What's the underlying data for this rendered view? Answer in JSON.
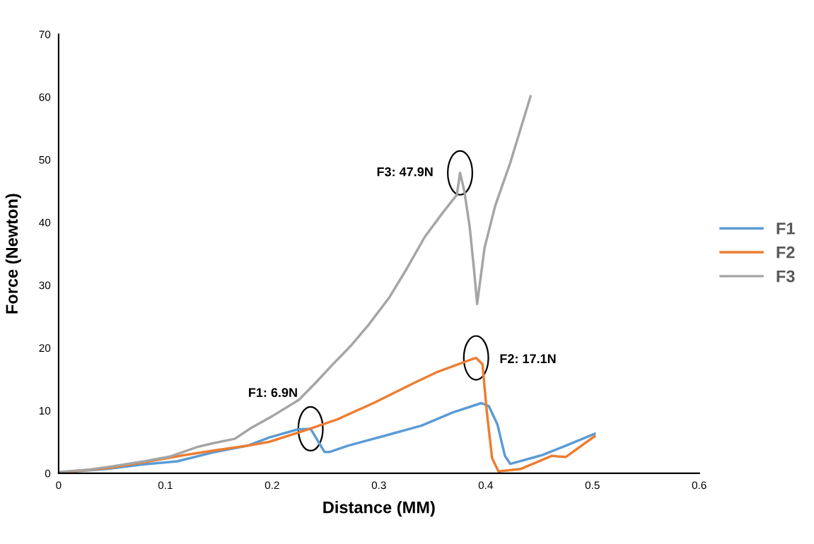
{
  "chart_data": {
    "type": "line",
    "xlabel": "Distance (MM)",
    "ylabel": "Force (Newton)",
    "xlim": [
      0,
      0.6
    ],
    "xticks": [
      0,
      0.1,
      0.2,
      0.3,
      0.4,
      0.5,
      0.6
    ],
    "ylim": [
      0,
      70
    ],
    "yticks": [
      0,
      10,
      20,
      30,
      40,
      50,
      60,
      70
    ],
    "grid": false,
    "legend": "right",
    "marker": "none",
    "line_style": "solid",
    "series": [
      {
        "name": "F1",
        "color": "#5b9bd5",
        "x": [
          0,
          0.045,
          0.078,
          0.111,
          0.144,
          0.177,
          0.197,
          0.224,
          0.236,
          0.249,
          0.254,
          0.271,
          0.308,
          0.34,
          0.369,
          0.396,
          0.403,
          0.411,
          0.418,
          0.423,
          0.453,
          0.475,
          0.502
        ],
        "values": [
          0.1,
          0.7,
          1.4,
          1.9,
          3.3,
          4.4,
          5.7,
          7.0,
          7.1,
          3.4,
          3.4,
          4.4,
          6.1,
          7.6,
          9.7,
          11.2,
          10.7,
          7.8,
          2.8,
          1.5,
          2.9,
          4.4,
          6.3
        ]
      },
      {
        "name": "F2",
        "color": "#ed7d31",
        "x": [
          0,
          0.045,
          0.078,
          0.111,
          0.144,
          0.177,
          0.197,
          0.232,
          0.261,
          0.295,
          0.334,
          0.354,
          0.389,
          0.391,
          0.397,
          0.401,
          0.406,
          0.412,
          0.433,
          0.462,
          0.467,
          0.475,
          0.502
        ],
        "values": [
          0.1,
          0.8,
          1.7,
          2.7,
          3.6,
          4.4,
          5.0,
          6.9,
          8.6,
          11.2,
          14.5,
          16.1,
          18.3,
          18.4,
          17.4,
          9.9,
          2.4,
          0.3,
          0.7,
          2.8,
          2.7,
          2.6,
          5.9
        ]
      },
      {
        "name": "F3",
        "color": "#a5a5a5",
        "x": [
          0,
          0.03,
          0.05,
          0.08,
          0.105,
          0.13,
          0.145,
          0.165,
          0.18,
          0.2,
          0.225,
          0.24,
          0.257,
          0.273,
          0.29,
          0.31,
          0.326,
          0.343,
          0.36,
          0.373,
          0.376,
          0.38,
          0.385,
          0.389,
          0.392,
          0.399,
          0.409,
          0.423,
          0.442
        ],
        "values": [
          0.2,
          0.6,
          1.1,
          1.9,
          2.7,
          4.2,
          4.8,
          5.5,
          7.2,
          9.1,
          11.7,
          14.3,
          17.4,
          20.2,
          23.6,
          28.1,
          32.6,
          37.7,
          41.6,
          44.4,
          47.9,
          45.0,
          39.3,
          32.6,
          27.0,
          36.0,
          42.7,
          49.5,
          60.1
        ]
      }
    ],
    "annotations": [
      {
        "text": "F1: 6.9N",
        "x": 0.236,
        "y": 7.1
      },
      {
        "text": "F3: 47.9N",
        "x": 0.376,
        "y": 47.9
      },
      {
        "text": "F2: 17.1N",
        "x": 0.391,
        "y": 18.4
      }
    ]
  }
}
